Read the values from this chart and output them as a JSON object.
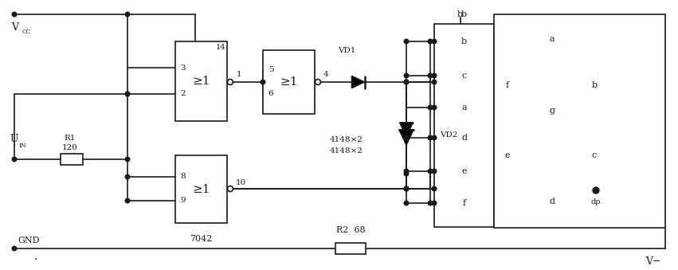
{
  "background_color": "#ffffff",
  "line_color": "#1a1a1a",
  "text_color": "#1a1a1a",
  "figsize": [
    8.51,
    3.39
  ],
  "dpi": 100,
  "gate_label": "≥1",
  "ic_label": "7042",
  "diode_model": "4148×2",
  "R2_label": "R2  68",
  "Vminus": "V−"
}
